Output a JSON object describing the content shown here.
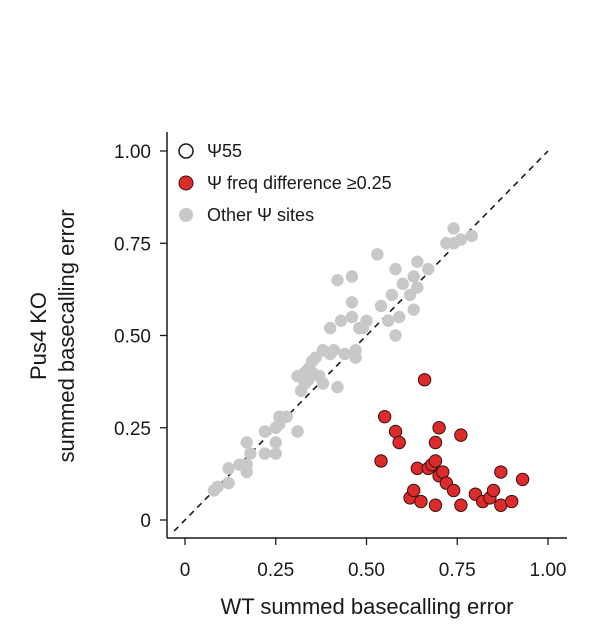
{
  "chart_data": {
    "type": "scatter",
    "xlabel": "WT summed basecalling error",
    "ylabel_lines": [
      "Pus4 KO",
      "summed basecalling error"
    ],
    "xlim": [
      -0.05,
      1.05
    ],
    "ylim": [
      -0.05,
      1.05
    ],
    "x_ticks": [
      {
        "value": 0,
        "label": "0"
      },
      {
        "value": 0.25,
        "label": "0.25"
      },
      {
        "value": 0.5,
        "label": "0.50"
      },
      {
        "value": 0.75,
        "label": "0.75"
      },
      {
        "value": 1.0,
        "label": "1.00"
      }
    ],
    "y_ticks": [
      {
        "value": 0,
        "label": "0"
      },
      {
        "value": 0.25,
        "label": "0.25"
      },
      {
        "value": 0.5,
        "label": "0.50"
      },
      {
        "value": 0.75,
        "label": "0.75"
      },
      {
        "value": 1.0,
        "label": "1.00"
      }
    ],
    "reference_line": {
      "style": "dashed",
      "x": [
        -0.03,
        1.0
      ],
      "y": [
        -0.03,
        1.0
      ]
    },
    "legend": {
      "placement": "top-left",
      "entries": [
        {
          "series": "psi55",
          "label": "Ψ55"
        },
        {
          "series": "freq_diff",
          "label": "Ψ freq difference ≥0.25"
        },
        {
          "series": "other",
          "label": "Other Ψ sites"
        }
      ]
    },
    "series": [
      {
        "key": "other",
        "name": "Other Ψ sites",
        "fill": "#c8c8c8",
        "stroke": "none",
        "points": [
          [
            0.08,
            0.08
          ],
          [
            0.09,
            0.09
          ],
          [
            0.12,
            0.1
          ],
          [
            0.12,
            0.14
          ],
          [
            0.17,
            0.13
          ],
          [
            0.17,
            0.15
          ],
          [
            0.18,
            0.18
          ],
          [
            0.17,
            0.21
          ],
          [
            0.22,
            0.18
          ],
          [
            0.22,
            0.24
          ],
          [
            0.25,
            0.18
          ],
          [
            0.25,
            0.21
          ],
          [
            0.25,
            0.25
          ],
          [
            0.26,
            0.28
          ],
          [
            0.28,
            0.28
          ],
          [
            0.31,
            0.24
          ],
          [
            0.31,
            0.39
          ],
          [
            0.32,
            0.35
          ],
          [
            0.33,
            0.37
          ],
          [
            0.33,
            0.4
          ],
          [
            0.34,
            0.38
          ],
          [
            0.34,
            0.41
          ],
          [
            0.35,
            0.43
          ],
          [
            0.35,
            0.4
          ],
          [
            0.36,
            0.44
          ],
          [
            0.37,
            0.39
          ],
          [
            0.38,
            0.46
          ],
          [
            0.38,
            0.37
          ],
          [
            0.4,
            0.45
          ],
          [
            0.4,
            0.52
          ],
          [
            0.41,
            0.46
          ],
          [
            0.42,
            0.36
          ],
          [
            0.42,
            0.65
          ],
          [
            0.43,
            0.54
          ],
          [
            0.44,
            0.45
          ],
          [
            0.46,
            0.66
          ],
          [
            0.46,
            0.59
          ],
          [
            0.46,
            0.55
          ],
          [
            0.47,
            0.46
          ],
          [
            0.47,
            0.44
          ],
          [
            0.48,
            0.52
          ],
          [
            0.49,
            0.52
          ],
          [
            0.5,
            0.54
          ],
          [
            0.53,
            0.72
          ],
          [
            0.54,
            0.58
          ],
          [
            0.56,
            0.54
          ],
          [
            0.57,
            0.61
          ],
          [
            0.58,
            0.68
          ],
          [
            0.58,
            0.5
          ],
          [
            0.59,
            0.55
          ],
          [
            0.6,
            0.64
          ],
          [
            0.62,
            0.61
          ],
          [
            0.63,
            0.57
          ],
          [
            0.63,
            0.66
          ],
          [
            0.64,
            0.63
          ],
          [
            0.64,
            0.7
          ],
          [
            0.67,
            0.68
          ],
          [
            0.72,
            0.75
          ],
          [
            0.74,
            0.79
          ],
          [
            0.74,
            0.75
          ],
          [
            0.76,
            0.76
          ],
          [
            0.79,
            0.77
          ],
          [
            0.26,
            0.26
          ],
          [
            0.15,
            0.15
          ]
        ]
      },
      {
        "key": "freq_diff",
        "name": "Ψ freq difference ≥0.25",
        "fill": "#dc2b2b",
        "stroke": "#3a1111",
        "points": [
          [
            0.54,
            0.16
          ],
          [
            0.55,
            0.28
          ],
          [
            0.58,
            0.24
          ],
          [
            0.59,
            0.21
          ],
          [
            0.62,
            0.06
          ],
          [
            0.63,
            0.08
          ],
          [
            0.64,
            0.14
          ],
          [
            0.65,
            0.05
          ],
          [
            0.66,
            0.38
          ],
          [
            0.67,
            0.14
          ],
          [
            0.68,
            0.15
          ],
          [
            0.69,
            0.21
          ],
          [
            0.69,
            0.16
          ],
          [
            0.69,
            0.04
          ],
          [
            0.7,
            0.25
          ],
          [
            0.7,
            0.12
          ],
          [
            0.71,
            0.13
          ],
          [
            0.72,
            0.1
          ],
          [
            0.74,
            0.08
          ],
          [
            0.76,
            0.04
          ],
          [
            0.76,
            0.23
          ],
          [
            0.8,
            0.07
          ],
          [
            0.82,
            0.05
          ],
          [
            0.84,
            0.06
          ],
          [
            0.85,
            0.08
          ],
          [
            0.87,
            0.13
          ],
          [
            0.87,
            0.04
          ],
          [
            0.9,
            0.05
          ],
          [
            0.93,
            0.11
          ]
        ]
      },
      {
        "key": "psi55",
        "name": "Ψ55",
        "fill": "#ffffff",
        "stroke": "#1a1a1a",
        "points": []
      }
    ]
  }
}
